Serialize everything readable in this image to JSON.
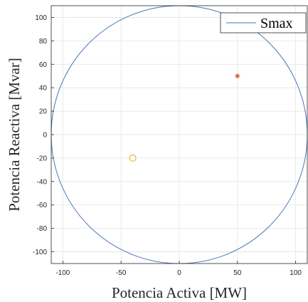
{
  "chart_data": {
    "type": "scatter",
    "title": "",
    "xlabel": "Potencia Activa [MW]",
    "ylabel": "Potencia Reactiva [Mvar]",
    "xlim": [
      -110,
      110
    ],
    "ylim": [
      -110,
      110
    ],
    "xticks": [
      -100,
      -50,
      0,
      50,
      100
    ],
    "yticks": [
      -100,
      -80,
      -60,
      -40,
      -20,
      0,
      20,
      40,
      60,
      80,
      100
    ],
    "grid": true,
    "legend_placement": "top-right",
    "series": [
      {
        "name": "Smax",
        "kind": "circle",
        "center": [
          0,
          0
        ],
        "radius": 110,
        "color": "#4a74b8"
      },
      {
        "kind": "marker",
        "marker": "asterisk",
        "x": [
          50
        ],
        "y": [
          50
        ],
        "color": "#d95319"
      },
      {
        "kind": "marker",
        "marker": "circle",
        "x": [
          -40
        ],
        "y": [
          -20
        ],
        "color": "#edb120"
      }
    ]
  }
}
